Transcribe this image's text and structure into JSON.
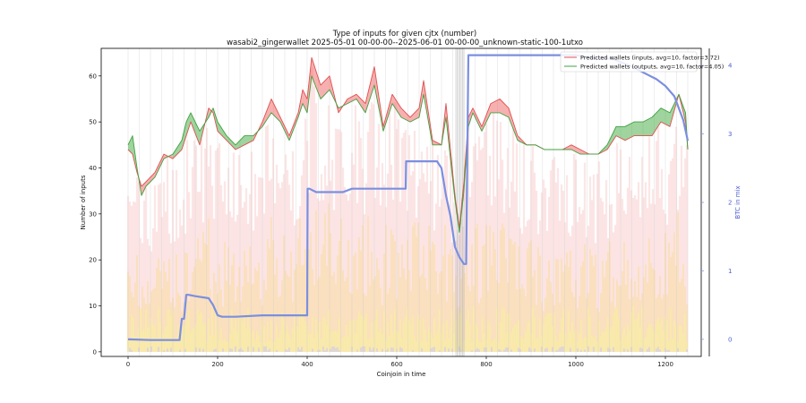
{
  "chart_data": {
    "type": "line",
    "title": "Type of inputs for given cjtx (number)",
    "subtitle": "wasabi2_gingerwallet 2025-05-01 00-00-00--2025-06-01 00-00-00_unknown-static-100-1utxo",
    "xlabel": "Coinjoin in time",
    "ylabel": "Number of inputs",
    "y2label": "BTC in mix",
    "xlim": [
      -60,
      1280
    ],
    "ylim": [
      -1,
      66
    ],
    "y2lim": [
      -0.25,
      4.25
    ],
    "x_ticks": [
      "0",
      "200",
      "400",
      "600",
      "800",
      "1000",
      "1200"
    ],
    "y_ticks": [
      "0",
      "10",
      "20",
      "30",
      "40",
      "50",
      "60"
    ],
    "y2_ticks": [
      "0",
      "1",
      "2",
      "3",
      "4"
    ],
    "grid": "vertical lines at cjtx events",
    "legend": "top-right",
    "colors": {
      "inputs_line": "#e05050",
      "outputs_line": "#40a040",
      "fill_inputs_higher": "#f07070",
      "fill_outputs_higher": "#50b050",
      "btc_line": "#7b8fe0",
      "bg_fresh": "#f8c8c8",
      "bg_remix": "#f8dca0",
      "bg_small": "#f8f0a0",
      "bg_friends": "#c8c8f8"
    },
    "legend_entries": [
      "Predicted wallets (inputs, avg=10, factor=3.72)",
      "Predicted wallets (outputs, avg=10, factor=4.05)"
    ],
    "series": [
      {
        "name": "Predicted wallets (inputs, avg=10, factor=3.72)",
        "x": [
          0,
          10,
          20,
          30,
          40,
          60,
          80,
          100,
          120,
          130,
          140,
          160,
          180,
          190,
          200,
          220,
          240,
          260,
          280,
          300,
          320,
          340,
          360,
          380,
          390,
          400,
          410,
          430,
          450,
          470,
          490,
          510,
          530,
          550,
          570,
          590,
          610,
          630,
          650,
          660,
          680,
          700,
          710,
          720,
          730,
          740,
          750,
          760,
          770,
          790,
          810,
          830,
          850,
          870,
          890,
          910,
          930,
          950,
          970,
          990,
          1010,
          1030,
          1050,
          1070,
          1090,
          1110,
          1130,
          1150,
          1170,
          1190,
          1210,
          1230,
          1245,
          1250
        ],
        "y": [
          44,
          43,
          39,
          36,
          37,
          39,
          43,
          42,
          44,
          47,
          50,
          45,
          53,
          52,
          48,
          46,
          44,
          45,
          46,
          50,
          55,
          51,
          47,
          52,
          57,
          55,
          64,
          58,
          60,
          52,
          55,
          56,
          54,
          62,
          49,
          56,
          53,
          51,
          53,
          59,
          46,
          45,
          54,
          44,
          34,
          27,
          37,
          51,
          53,
          49,
          54,
          55,
          53,
          47,
          45,
          45,
          44,
          44,
          44,
          45,
          44,
          43,
          43,
          44,
          47,
          46,
          47,
          47,
          47,
          50,
          49,
          56,
          50,
          44
        ]
      },
      {
        "name": "Predicted wallets (outputs, avg=10, factor=4.05)",
        "x": [
          0,
          10,
          20,
          30,
          40,
          60,
          80,
          100,
          120,
          130,
          140,
          160,
          180,
          190,
          200,
          220,
          240,
          260,
          280,
          300,
          320,
          340,
          360,
          380,
          390,
          400,
          410,
          430,
          450,
          470,
          490,
          510,
          530,
          550,
          570,
          590,
          610,
          630,
          650,
          660,
          680,
          700,
          710,
          720,
          730,
          740,
          750,
          760,
          770,
          790,
          810,
          830,
          850,
          870,
          890,
          910,
          930,
          950,
          970,
          990,
          1010,
          1030,
          1050,
          1070,
          1090,
          1110,
          1130,
          1150,
          1170,
          1190,
          1210,
          1230,
          1245,
          1250
        ],
        "y": [
          45,
          47,
          40,
          34,
          36,
          38,
          42,
          43,
          46,
          50,
          52,
          48,
          51,
          53,
          50,
          47,
          45,
          47,
          47,
          49,
          52,
          50,
          46,
          51,
          54,
          52,
          60,
          55,
          57,
          53,
          54,
          55,
          52,
          58,
          48,
          54,
          51,
          50,
          51,
          56,
          45,
          45,
          51,
          42,
          33,
          26,
          35,
          49,
          52,
          48,
          52,
          52,
          51,
          46,
          45,
          45,
          44,
          44,
          44,
          44,
          43,
          43,
          43,
          45,
          49,
          49,
          50,
          50,
          51,
          53,
          52,
          56,
          52,
          44
        ]
      },
      {
        "name": "BTC in mix",
        "axis": "y2",
        "x": [
          0,
          50,
          100,
          115,
          120,
          125,
          130,
          135,
          150,
          180,
          190,
          200,
          210,
          220,
          240,
          300,
          380,
          395,
          400,
          401,
          405,
          420,
          440,
          480,
          500,
          600,
          620,
          621,
          690,
          700,
          710,
          720,
          730,
          740,
          750,
          755,
          760,
          780,
          900,
          1000,
          1040,
          1080,
          1100,
          1120,
          1150,
          1180,
          1200,
          1220,
          1240,
          1250
        ],
        "y": [
          0.0,
          -0.01,
          -0.01,
          -0.01,
          0.3,
          0.3,
          0.65,
          0.65,
          0.63,
          0.6,
          0.5,
          0.35,
          0.33,
          0.33,
          0.33,
          0.35,
          0.35,
          0.35,
          0.35,
          2.2,
          2.2,
          2.15,
          2.15,
          2.15,
          2.2,
          2.2,
          2.2,
          2.6,
          2.6,
          2.5,
          2.1,
          1.8,
          1.35,
          1.2,
          1.1,
          1.1,
          4.15,
          4.15,
          4.15,
          4.15,
          4.1,
          4.1,
          4.05,
          4.0,
          3.9,
          3.8,
          3.7,
          3.55,
          3.2,
          2.9
        ]
      }
    ]
  }
}
